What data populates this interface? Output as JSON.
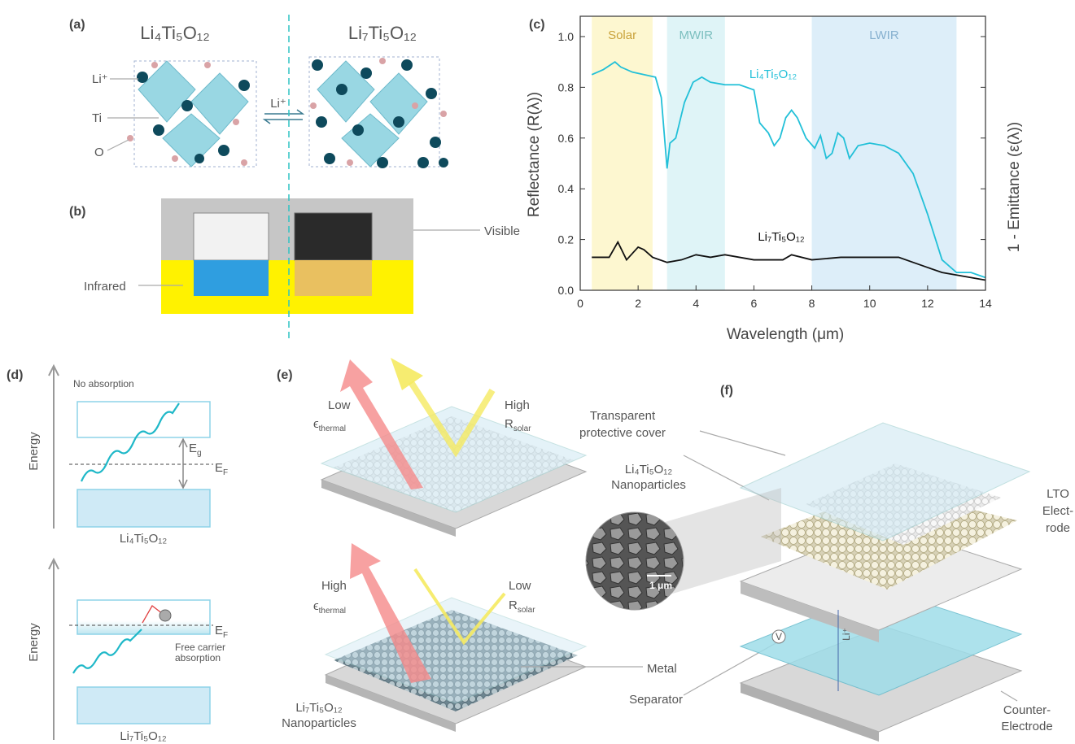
{
  "chart_data": {
    "type": "line",
    "label": "(c)",
    "xlabel": "Wavelength (μm)",
    "ylabel": "Reflectance (R(λ))",
    "y2label": "1 - Emittance (ε(λ))",
    "xlim": [
      0,
      14
    ],
    "ylim": [
      0,
      1.08
    ],
    "xticks": [
      0,
      2,
      4,
      6,
      8,
      10,
      12,
      14
    ],
    "yticks": [
      {
        "value": 0,
        "label": "0.0"
      },
      {
        "value": 0.2,
        "label": "0.2"
      },
      {
        "value": 0.4,
        "label": "0.4"
      },
      {
        "value": 0.6,
        "label": "0.6"
      },
      {
        "value": 0.8,
        "label": "0.8"
      },
      {
        "value": 1,
        "label": "1.0"
      }
    ],
    "bands": [
      {
        "name": "Solar",
        "range": [
          0.4,
          2.5
        ],
        "color": "#fdf7d0",
        "text_color": "#c9a23a"
      },
      {
        "name": "MWIR",
        "range": [
          3,
          5
        ],
        "color": "#dff4f7",
        "text_color": "#7cbfbf"
      },
      {
        "name": "LWIR",
        "range": [
          8,
          13
        ],
        "color": "#ddeef9",
        "text_color": "#86b0cf"
      }
    ],
    "series": [
      {
        "name": "Li₄Ti₅O₁₂",
        "color": "#22c0d8",
        "x": [
          0.4,
          0.8,
          1.2,
          1.4,
          1.8,
          2.2,
          2.6,
          2.8,
          2.9,
          3.0,
          3.1,
          3.3,
          3.6,
          3.9,
          4.2,
          4.5,
          5,
          5.5,
          6,
          6.2,
          6.5,
          6.7,
          6.9,
          7.1,
          7.3,
          7.5,
          7.8,
          8.1,
          8.3,
          8.5,
          8.7,
          8.9,
          9.1,
          9.3,
          9.6,
          10,
          10.5,
          11,
          11.5,
          12,
          12.5,
          13,
          13.5,
          14
        ],
        "values": [
          0.85,
          0.87,
          0.9,
          0.88,
          0.86,
          0.85,
          0.84,
          0.76,
          0.62,
          0.48,
          0.58,
          0.6,
          0.74,
          0.82,
          0.84,
          0.82,
          0.81,
          0.81,
          0.79,
          0.66,
          0.62,
          0.57,
          0.6,
          0.68,
          0.71,
          0.68,
          0.6,
          0.56,
          0.61,
          0.52,
          0.54,
          0.62,
          0.6,
          0.52,
          0.57,
          0.58,
          0.57,
          0.54,
          0.46,
          0.3,
          0.12,
          0.07,
          0.07,
          0.05
        ]
      },
      {
        "name": "Li₇Ti₅O₁₂",
        "color": "#111111",
        "x": [
          0.4,
          1,
          1.3,
          1.6,
          2,
          2.2,
          2.5,
          3,
          3.5,
          4,
          4.5,
          5,
          6,
          7,
          7.3,
          8,
          9,
          10,
          11,
          11.5,
          12,
          12.5,
          13,
          13.5,
          14
        ],
        "values": [
          0.13,
          0.13,
          0.19,
          0.12,
          0.17,
          0.16,
          0.13,
          0.11,
          0.12,
          0.14,
          0.13,
          0.14,
          0.12,
          0.12,
          0.14,
          0.12,
          0.13,
          0.13,
          0.13,
          0.11,
          0.09,
          0.07,
          0.06,
          0.05,
          0.04
        ]
      }
    ]
  },
  "panels": {
    "a": {
      "label": "(a)",
      "left_formula": "Li₄Ti₅O₁₂",
      "right_formula": "Li₇Ti₅O₁₂",
      "ion": "Li⁺",
      "atoms": [
        "Li⁺",
        "Ti",
        "O"
      ]
    },
    "b": {
      "label": "(b)",
      "visible": "Visible",
      "infrared": "Infrared"
    },
    "d": {
      "label": "(d)",
      "energy": "Energy",
      "no_absorption": "No absorption",
      "gap": {
        "main": "E",
        "sub": "g"
      },
      "fermi": {
        "main": "E",
        "sub": "F"
      },
      "top_formula": "Li₄Ti₅O₁₂",
      "bottom_formula": "Li₇Ti₅O₁₂",
      "free_carrier": [
        "Free carrier",
        "absorption"
      ]
    },
    "e": {
      "label": "(e)",
      "low": "Low",
      "high": "High",
      "thermal": {
        "main": "ϵ",
        "sub": "thermal"
      },
      "solar": {
        "main": "R",
        "sub": "solar"
      },
      "cover": [
        "Transparent",
        "protective cover"
      ],
      "top_particles": [
        "Li₄Ti₅O₁₂",
        "Nanoparticles"
      ],
      "bottom_particles": [
        "Li₇Ti₅O₁₂",
        "Nanoparticles"
      ],
      "metal": "Metal",
      "separator": "Separator"
    },
    "f": {
      "label": "(f)",
      "lto": [
        "LTO",
        "Elect-",
        "rode"
      ],
      "counter": [
        "Counter-",
        "Electrode"
      ],
      "ion": "Li⁺",
      "voltage": "V",
      "scale": "1 μm"
    }
  }
}
